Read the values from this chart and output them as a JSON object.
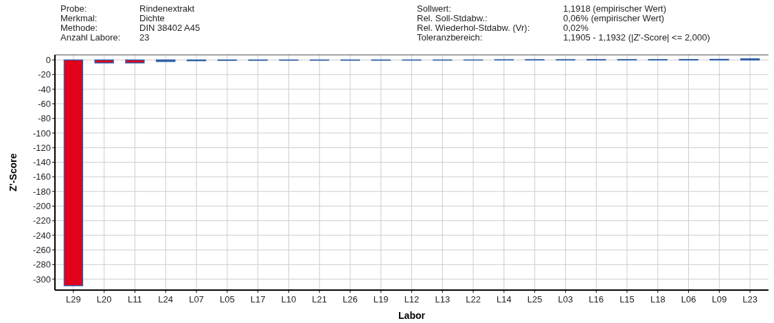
{
  "chart_data": {
    "type": "bar",
    "xlabel": "Labor",
    "ylabel": "Z'-Score",
    "annotations": [
      "Probe:",
      "Rindenextrakt",
      "Merkmal:",
      "Dichte",
      "Methode:",
      "DIN 38402 A45",
      "Anzahl Labore:",
      "23",
      "Sollwert:",
      "1,1918  (empirischer Wert)",
      "Rel. Soll-Stdabw.:",
      "0,06% (empirischer Wert)",
      "Rel. Wiederhol-Stdabw. (Vr):",
      "0,02%",
      "Toleranzbereich:",
      "1,1905 - 1,1932  (|Z'-Score| <= 2,000)"
    ],
    "categories": [
      "L29",
      "L20",
      "L11",
      "L24",
      "L07",
      "L05",
      "L17",
      "L10",
      "L21",
      "L26",
      "L19",
      "L12",
      "L13",
      "L22",
      "L14",
      "L25",
      "L03",
      "L16",
      "L15",
      "L18",
      "L06",
      "L09",
      "L23"
    ],
    "values": [
      -309,
      -4,
      -4,
      -2,
      -1,
      -0.5,
      -0.4,
      -0.3,
      -0.3,
      -0.3,
      -0.3,
      -0.2,
      -0.2,
      -0.1,
      0.3,
      0.4,
      0.4,
      0.5,
      0.5,
      0.5,
      0.6,
      0.8,
      1.5
    ],
    "colors": [
      "#e2001a",
      "#e2001a",
      "#e2001a",
      "#2e5fa8",
      "#2e5fa8",
      "#2e5fa8",
      "#2e5fa8",
      "#2e5fa8",
      "#2e5fa8",
      "#2e5fa8",
      "#2e5fa8",
      "#2e5fa8",
      "#2e5fa8",
      "#2e5fa8",
      "#2e5fa8",
      "#2e5fa8",
      "#2e5fa8",
      "#2e5fa8",
      "#2e5fa8",
      "#2e5fa8",
      "#2e5fa8",
      "#2e5fa8",
      "#2e5fa8"
    ],
    "ylim": [
      -315,
      7
    ],
    "yticks": [
      0,
      -20,
      -40,
      -60,
      -80,
      -100,
      -120,
      -140,
      -160,
      -180,
      -200,
      -220,
      -240,
      -260,
      -280,
      -300
    ],
    "grid": true
  }
}
